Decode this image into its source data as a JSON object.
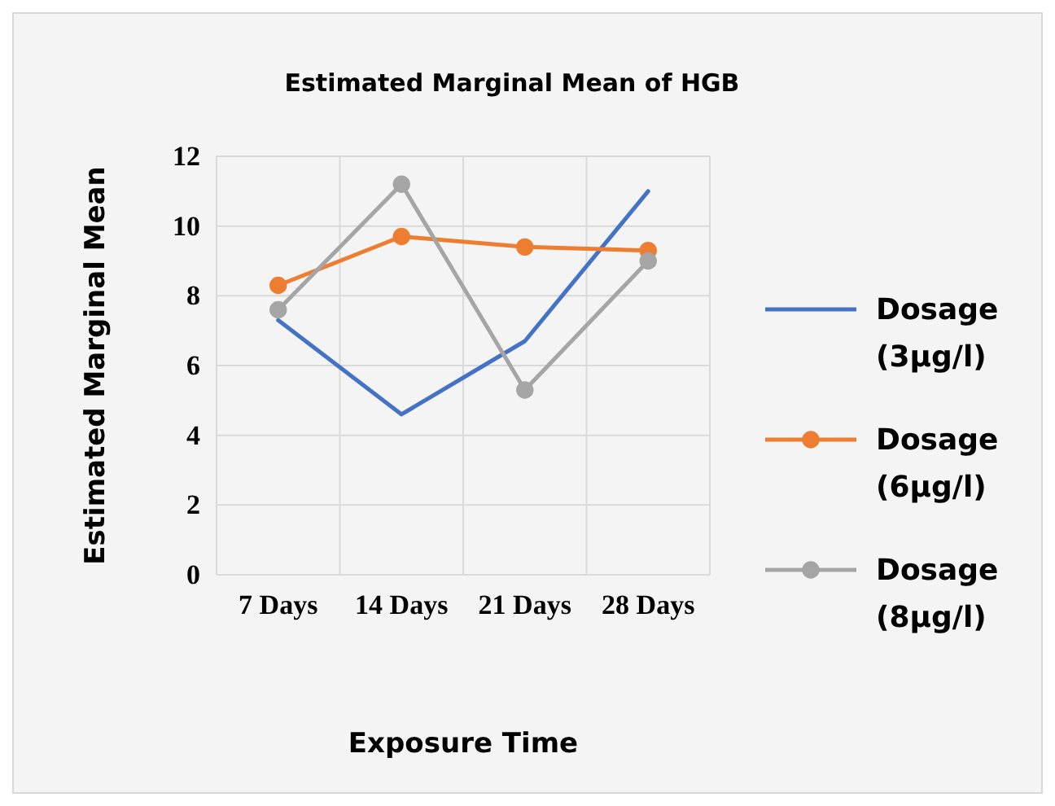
{
  "chart_data": {
    "type": "line",
    "title": "Estimated Marginal Mean of HGB",
    "xlabel": "Exposure Time",
    "ylabel": "Estimated Marginal Mean",
    "categories": [
      "7 Days",
      "14 Days",
      "21 Days",
      "28 Days"
    ],
    "series": [
      {
        "name": "Dosage (3µg/l)",
        "color": "#4472c4",
        "marker": "none",
        "values": [
          7.3,
          4.6,
          6.7,
          11.0
        ]
      },
      {
        "name": "Dosage (6µg/l)",
        "color": "#ed7d31",
        "marker": "circle",
        "values": [
          8.3,
          9.7,
          9.4,
          9.3
        ]
      },
      {
        "name": "Dosage (8µg/l)",
        "color": "#a5a5a5",
        "marker": "circle",
        "values": [
          7.6,
          11.2,
          5.3,
          9.0
        ]
      }
    ],
    "ylim": [
      0,
      12
    ],
    "yticks": [
      0,
      2,
      4,
      6,
      8,
      10,
      12
    ],
    "grid": true,
    "legend": "right"
  }
}
